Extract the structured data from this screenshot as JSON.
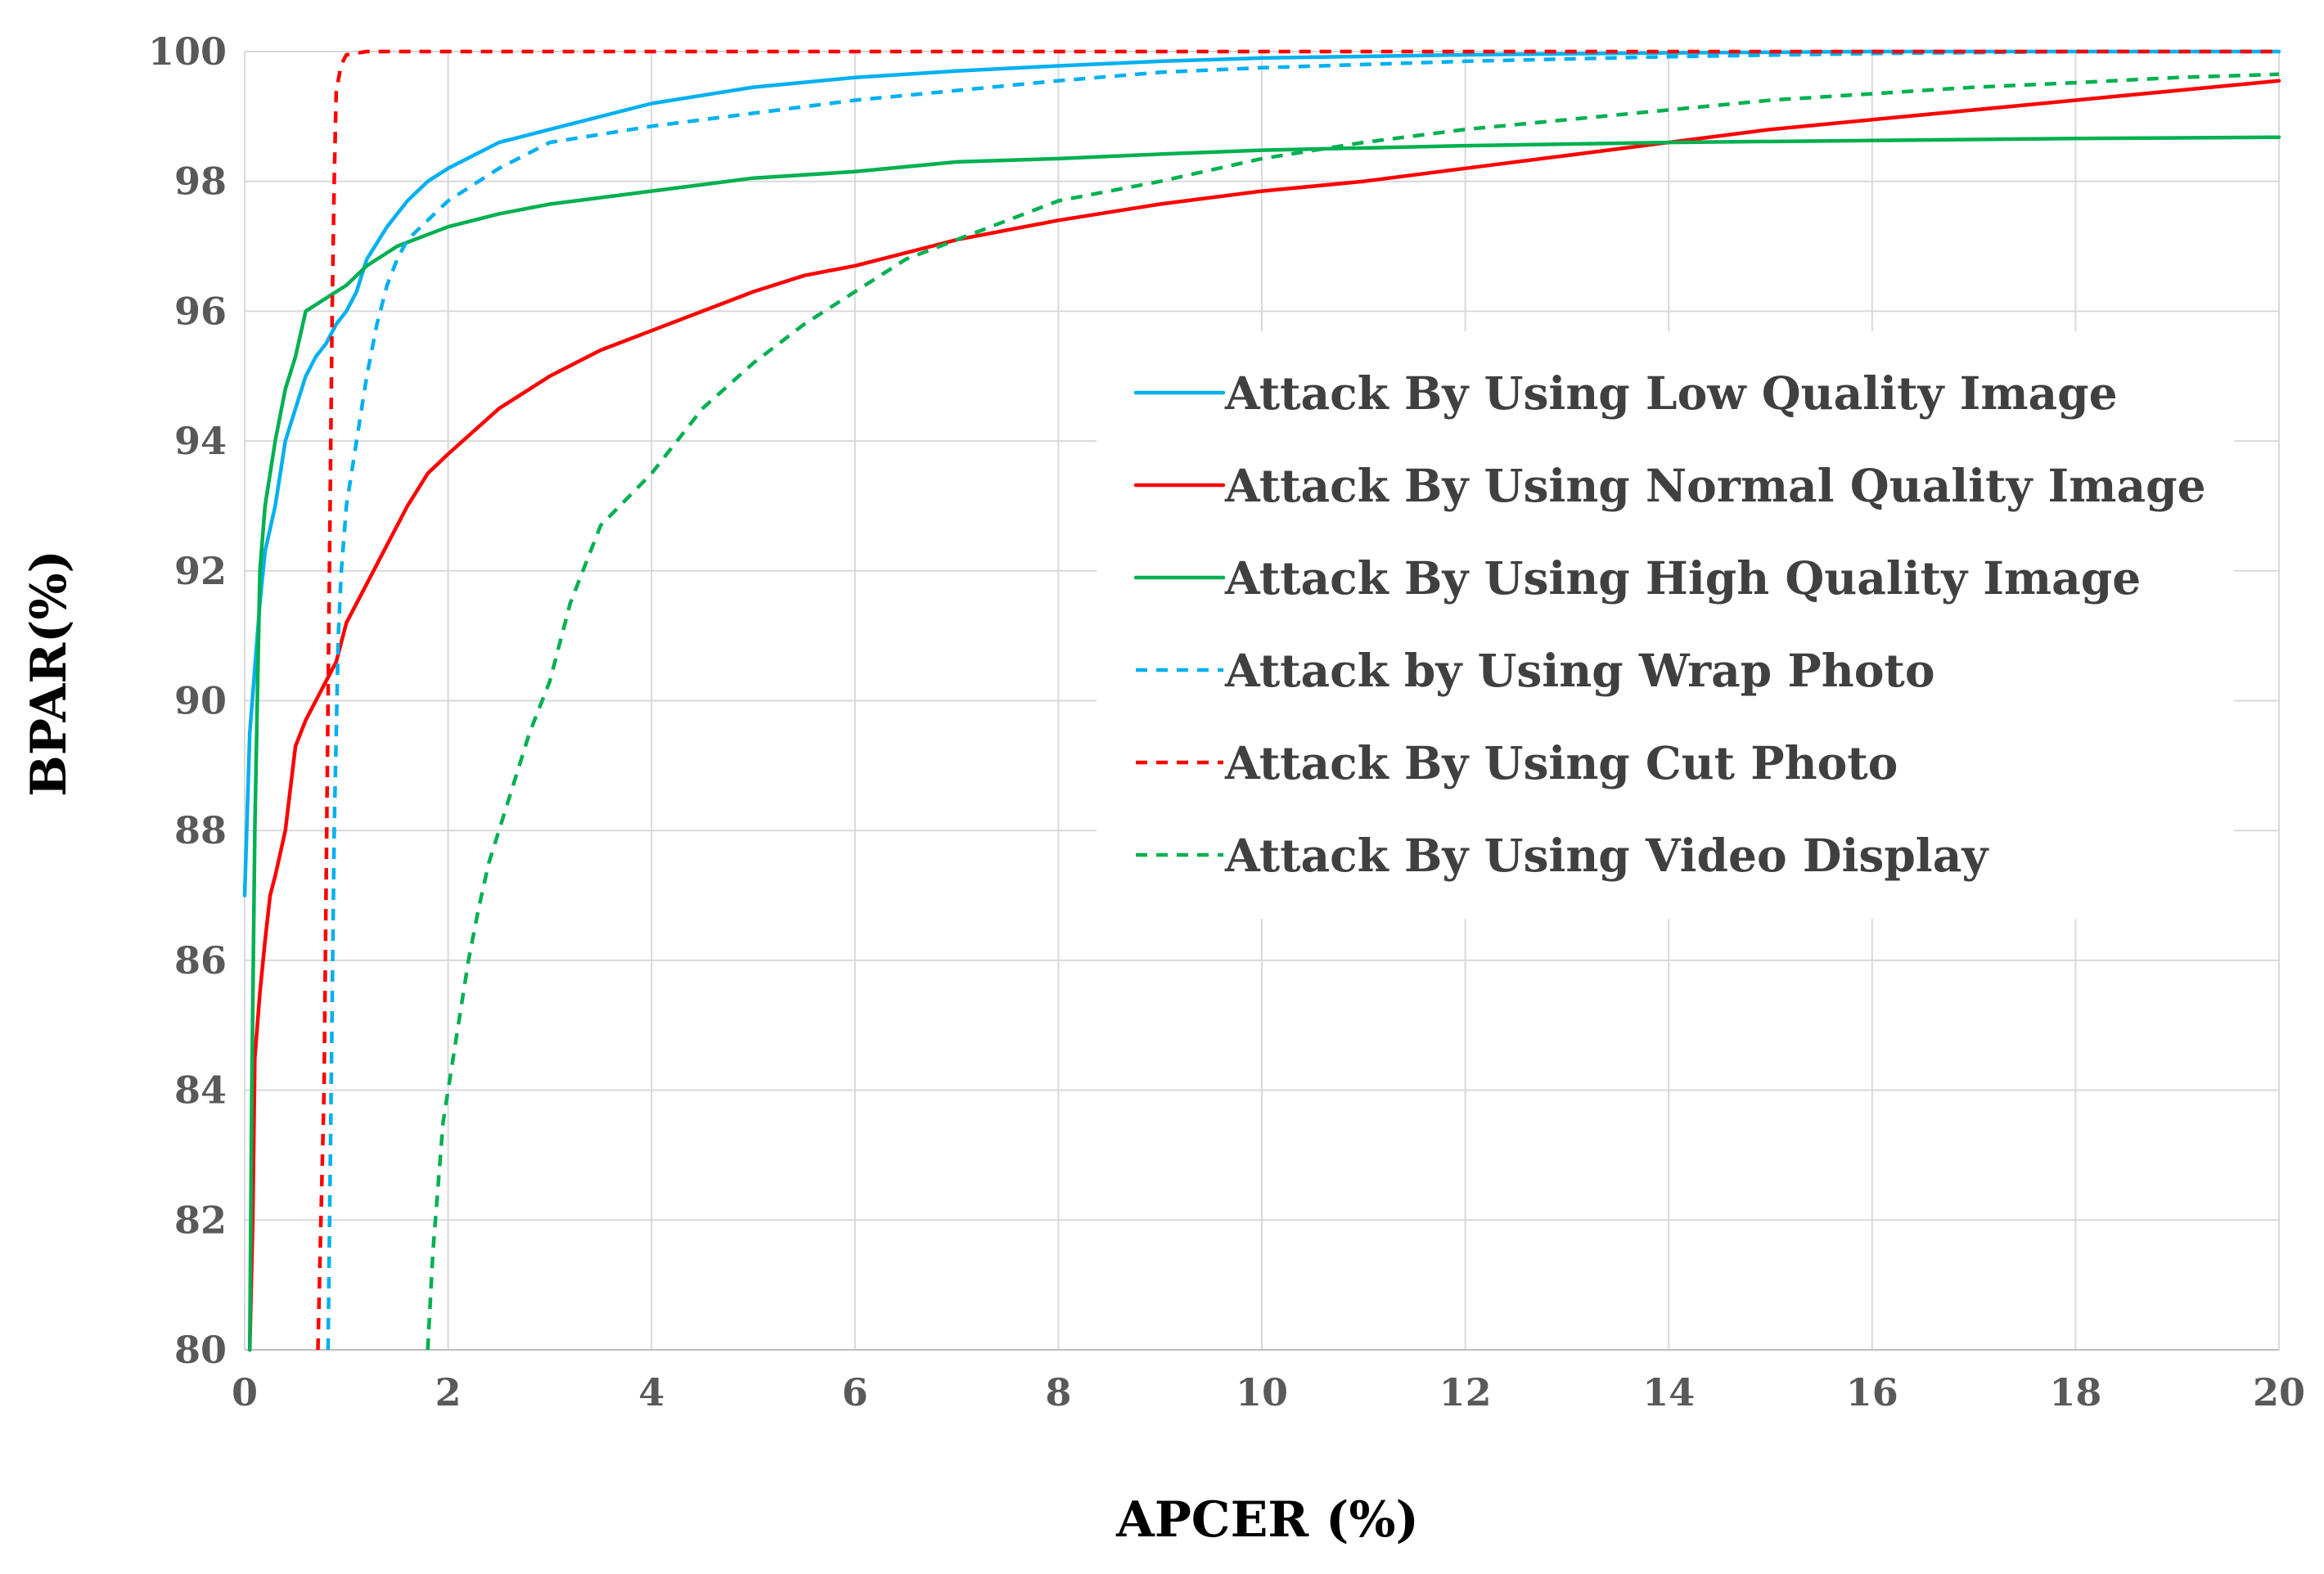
{
  "chart_data": {
    "type": "line",
    "title": "",
    "xlabel": "APCER (%)",
    "ylabel": "BPAR(%)",
    "xlim": [
      0,
      20
    ],
    "ylim": [
      80,
      100
    ],
    "xticks": [
      0,
      2,
      4,
      6,
      8,
      10,
      12,
      14,
      16,
      18,
      20
    ],
    "yticks": [
      80,
      82,
      84,
      86,
      88,
      90,
      92,
      94,
      96,
      98,
      100
    ],
    "grid": true,
    "legend_position": "right-center",
    "series": [
      {
        "name": "Attack By Using Low Quality Image",
        "color": "#00b0f0",
        "dashed": false,
        "x": [
          0.0,
          0.05,
          0.1,
          0.15,
          0.2,
          0.3,
          0.4,
          0.5,
          0.6,
          0.7,
          0.8,
          0.9,
          1.0,
          1.1,
          1.2,
          1.4,
          1.6,
          1.8,
          2.0,
          2.5,
          3.0,
          4.0,
          5.0,
          6.0,
          7.0,
          8.0,
          9.0,
          10.0,
          12.0,
          14.0,
          16.0,
          18.0,
          20.0
        ],
        "y": [
          87.0,
          89.5,
          90.5,
          91.5,
          92.3,
          93.0,
          94.0,
          94.5,
          95.0,
          95.3,
          95.5,
          95.8,
          96.0,
          96.3,
          96.8,
          97.3,
          97.7,
          98.0,
          98.2,
          98.6,
          98.8,
          99.2,
          99.45,
          99.6,
          99.7,
          99.78,
          99.85,
          99.9,
          99.95,
          99.98,
          100.0,
          100.0,
          100.0
        ]
      },
      {
        "name": "Attack By Using Normal Quality Image",
        "color": "#ff0000",
        "dashed": false,
        "x": [
          0.05,
          0.08,
          0.1,
          0.15,
          0.2,
          0.25,
          0.3,
          0.4,
          0.5,
          0.6,
          0.7,
          0.8,
          0.9,
          1.0,
          1.2,
          1.4,
          1.6,
          1.8,
          2.0,
          2.5,
          3.0,
          3.5,
          4.0,
          4.5,
          5.0,
          5.5,
          6.0,
          7.0,
          8.0,
          9.0,
          10.0,
          11.0,
          12.0,
          13.0,
          14.0,
          15.0,
          16.0,
          17.0,
          18.0,
          19.0,
          20.0
        ],
        "y": [
          80.0,
          82.0,
          84.5,
          85.5,
          86.3,
          87.0,
          87.3,
          88.0,
          89.3,
          89.7,
          90.0,
          90.3,
          90.6,
          91.2,
          91.8,
          92.4,
          93.0,
          93.5,
          93.8,
          94.5,
          95.0,
          95.4,
          95.7,
          96.0,
          96.3,
          96.55,
          96.7,
          97.1,
          97.4,
          97.65,
          97.85,
          98.0,
          98.2,
          98.4,
          98.6,
          98.8,
          98.95,
          99.1,
          99.25,
          99.4,
          99.55
        ]
      },
      {
        "name": "Attack By Using High Quality Image",
        "color": "#00b050",
        "dashed": false,
        "x": [
          0.05,
          0.07,
          0.1,
          0.13,
          0.15,
          0.2,
          0.3,
          0.4,
          0.5,
          0.6,
          0.7,
          0.8,
          1.0,
          1.2,
          1.5,
          2.0,
          2.5,
          3.0,
          4.0,
          5.0,
          6.0,
          7.0,
          8.0,
          9.0,
          10.0,
          12.0,
          14.0,
          16.0,
          18.0,
          20.0
        ],
        "y": [
          80.0,
          84.0,
          88.0,
          90.5,
          92.0,
          93.0,
          94.0,
          94.8,
          95.3,
          96.0,
          96.1,
          96.2,
          96.4,
          96.7,
          97.0,
          97.3,
          97.5,
          97.65,
          97.85,
          98.05,
          98.15,
          98.3,
          98.35,
          98.42,
          98.48,
          98.55,
          98.6,
          98.63,
          98.66,
          98.68
        ]
      },
      {
        "name": "Attack by Using Wrap Photo",
        "color": "#00b0f0",
        "dashed": true,
        "x": [
          0.82,
          0.85,
          0.88,
          0.92,
          0.95,
          1.0,
          1.1,
          1.2,
          1.3,
          1.4,
          1.5,
          1.6,
          1.8,
          2.0,
          2.5,
          3.0,
          4.0,
          5.0,
          6.0,
          7.0,
          8.0,
          9.0,
          10.0,
          12.0,
          14.0,
          16.0,
          18.0,
          20.0
        ],
        "y": [
          80.0,
          84.0,
          88.0,
          91.0,
          92.0,
          93.0,
          94.0,
          95.0,
          95.8,
          96.4,
          96.8,
          97.1,
          97.4,
          97.7,
          98.2,
          98.6,
          98.85,
          99.05,
          99.25,
          99.4,
          99.55,
          99.68,
          99.75,
          99.85,
          99.92,
          99.97,
          100.0,
          100.0
        ]
      },
      {
        "name": "Attack By Using Cut Photo",
        "color": "#ff0000",
        "dashed": true,
        "x": [
          0.72,
          0.75,
          0.78,
          0.8,
          0.82,
          0.84,
          0.86,
          0.88,
          0.9,
          0.95,
          1.0,
          1.2,
          2.0,
          5.0,
          10.0,
          20.0
        ],
        "y": [
          80.0,
          82.0,
          84.0,
          87.0,
          90.0,
          93.0,
          96.0,
          98.0,
          99.4,
          99.8,
          99.95,
          100.0,
          100.0,
          100.0,
          100.0,
          100.0
        ]
      },
      {
        "name": "Attack By Using Video Display",
        "color": "#00b050",
        "dashed": true,
        "x": [
          1.8,
          1.85,
          1.9,
          1.95,
          2.0,
          2.1,
          2.2,
          2.3,
          2.4,
          2.6,
          2.8,
          3.0,
          3.2,
          3.5,
          4.0,
          4.5,
          5.0,
          5.5,
          6.0,
          6.5,
          7.0,
          7.5,
          8.0,
          9.0,
          10.0,
          11.0,
          12.0,
          13.0,
          14.0,
          15.0,
          16.0,
          17.0,
          18.0,
          19.0,
          20.0
        ],
        "y": [
          80.0,
          81.5,
          82.5,
          83.5,
          84.0,
          85.0,
          86.0,
          86.8,
          87.5,
          88.5,
          89.5,
          90.3,
          91.5,
          92.7,
          93.5,
          94.5,
          95.2,
          95.8,
          96.3,
          96.8,
          97.1,
          97.4,
          97.7,
          98.0,
          98.35,
          98.6,
          98.8,
          98.95,
          99.1,
          99.25,
          99.35,
          99.45,
          99.52,
          99.6,
          99.65
        ]
      }
    ]
  }
}
